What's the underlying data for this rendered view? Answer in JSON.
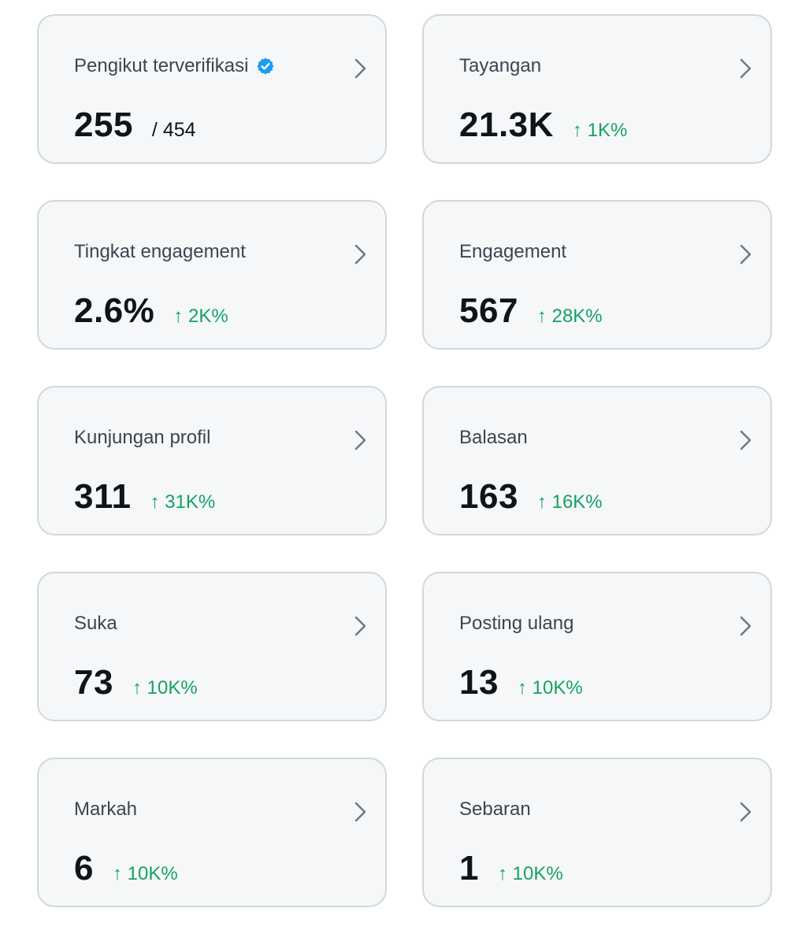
{
  "colors": {
    "card_bg": "#f5f7f8",
    "card_border": "#cfd9de",
    "title": "#3a4651",
    "value": "#0f1419",
    "positive": "#17a163",
    "verified": "#1d9bf0",
    "chevron": "#6b7882"
  },
  "cards": [
    {
      "title": "Pengikut terverifikasi",
      "value": "255",
      "total": "/ 454",
      "icon": "verified-badge-icon"
    },
    {
      "title": "Tayangan",
      "value": "21.3K",
      "change": "↑ 1K%"
    },
    {
      "title": "Tingkat engagement",
      "value": "2.6%",
      "change": "↑ 2K%"
    },
    {
      "title": "Engagement",
      "value": "567",
      "change": "↑ 28K%"
    },
    {
      "title": "Kunjungan profil",
      "value": "311",
      "change": "↑ 31K%"
    },
    {
      "title": "Balasan",
      "value": "163",
      "change": "↑ 16K%"
    },
    {
      "title": "Suka",
      "value": "73",
      "change": "↑ 10K%"
    },
    {
      "title": "Posting ulang",
      "value": "13",
      "change": "↑ 10K%"
    },
    {
      "title": "Markah",
      "value": "6",
      "change": "↑ 10K%"
    },
    {
      "title": "Sebaran",
      "value": "1",
      "change": "↑ 10K%"
    }
  ]
}
